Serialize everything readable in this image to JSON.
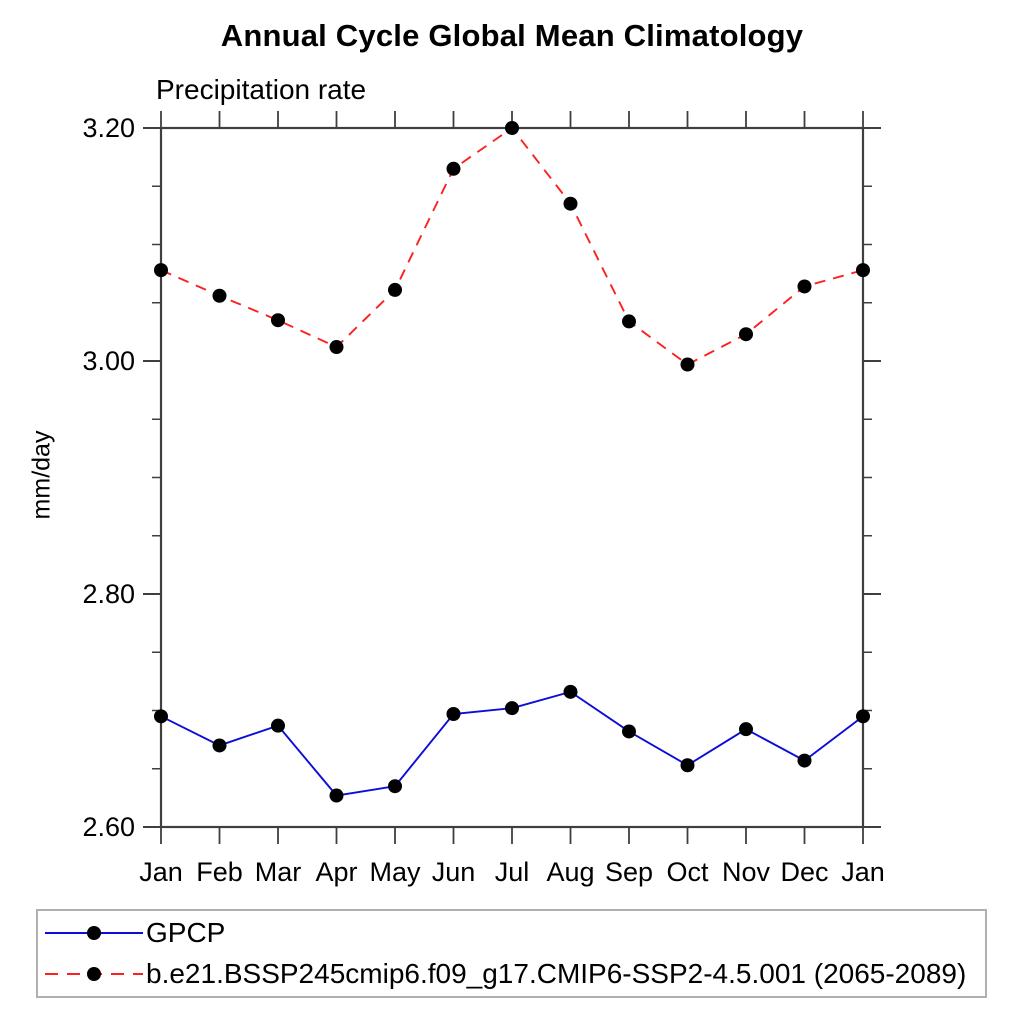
{
  "page": {
    "background": "#ffffff"
  },
  "chart_data": {
    "type": "line",
    "title": "Annual Cycle Global Mean Climatology",
    "subtitle": "Precipitation rate",
    "ylabel": "mm/day",
    "xlabel": "",
    "categories": [
      "Jan",
      "Feb",
      "Mar",
      "Apr",
      "May",
      "Jun",
      "Jul",
      "Aug",
      "Sep",
      "Oct",
      "Nov",
      "Dec",
      "Jan"
    ],
    "ylim": [
      2.6,
      3.2
    ],
    "ytick_labels": [
      "3.20",
      "3.00",
      "2.80",
      "2.60"
    ],
    "ytick_values": [
      3.2,
      3.0,
      2.8,
      2.6
    ],
    "ytick_minor_step": 0.05,
    "grid": false,
    "legend_position": "bottom",
    "axis_color": "#3f3f3f",
    "marker_color": "#000000",
    "legend_border_color": "#b0b0b0",
    "series": [
      {
        "name": "GPCP",
        "color": "#0d0dd8",
        "line_style": "solid",
        "marker": "filled-circle",
        "values": [
          2.695,
          2.67,
          2.687,
          2.627,
          2.635,
          2.697,
          2.702,
          2.716,
          2.682,
          2.653,
          2.684,
          2.657,
          2.695
        ]
      },
      {
        "name": "b.e21.BSSP245cmip6.f09_g17.CMIP6-SSP2-4.5.001 (2065-2089)",
        "color": "#fb2121",
        "line_style": "dashed",
        "marker": "filled-circle",
        "values": [
          3.078,
          3.056,
          3.035,
          3.012,
          3.061,
          3.165,
          3.2,
          3.135,
          3.034,
          2.997,
          3.023,
          3.064,
          3.078
        ]
      }
    ]
  }
}
